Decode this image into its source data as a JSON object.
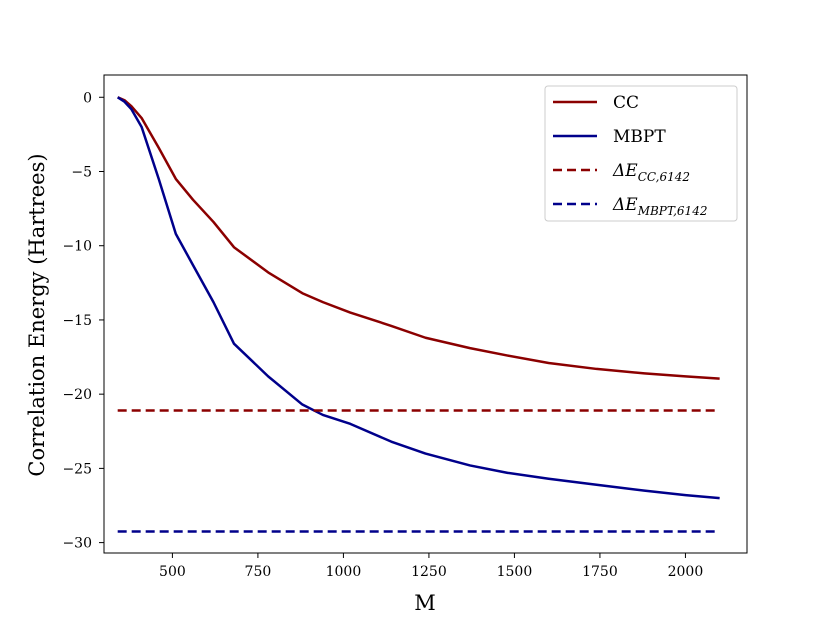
{
  "chart_data": {
    "type": "line",
    "title": "",
    "xlabel": "M",
    "ylabel": "Correlation Energy (Hartrees)",
    "xlim": [
      300,
      2180
    ],
    "ylim": [
      -30.7,
      1.5
    ],
    "xticks": [
      500,
      750,
      1000,
      1250,
      1500,
      1750,
      2000
    ],
    "yticks": [
      0,
      -5,
      -10,
      -15,
      -20,
      -25,
      -30
    ],
    "xtick_labels": [
      "500",
      "750",
      "1000",
      "1250",
      "1500",
      "1750",
      "2000"
    ],
    "ytick_labels": [
      "0",
      "−5",
      "−10",
      "−15",
      "−20",
      "−25",
      "−30"
    ],
    "legend_position": "top-right",
    "series": [
      {
        "name": "CC",
        "style": "solid",
        "color": "#8b0000",
        "x": [
          340,
          360,
          380,
          410,
          460,
          510,
          560,
          620,
          680,
          780,
          880,
          940,
          1020,
          1140,
          1240,
          1370,
          1480,
          1600,
          1740,
          1880,
          2000,
          2100
        ],
        "y": [
          0,
          -0.2,
          -0.6,
          -1.4,
          -3.4,
          -5.5,
          -6.9,
          -8.4,
          -10.1,
          -11.8,
          -13.2,
          -13.8,
          -14.5,
          -15.4,
          -16.2,
          -16.9,
          -17.4,
          -17.9,
          -18.3,
          -18.6,
          -18.8,
          -18.95
        ]
      },
      {
        "name": "MBPT",
        "style": "solid",
        "color": "#00008b",
        "x": [
          340,
          360,
          380,
          410,
          460,
          510,
          560,
          620,
          680,
          780,
          880,
          940,
          1020,
          1140,
          1240,
          1370,
          1480,
          1600,
          1740,
          1880,
          2000,
          2100
        ],
        "y": [
          0,
          -0.3,
          -0.8,
          -2.0,
          -5.5,
          -9.2,
          -11.3,
          -13.8,
          -16.6,
          -18.8,
          -20.7,
          -21.4,
          -22.0,
          -23.2,
          -24.0,
          -24.8,
          -25.3,
          -25.7,
          -26.1,
          -26.5,
          -26.8,
          -27.0
        ]
      },
      {
        "name": "ΔE_CC,6142",
        "style": "dashed",
        "color": "#8b0000",
        "x": [
          340,
          2100
        ],
        "y": [
          -21.1,
          -21.1
        ]
      },
      {
        "name": "ΔE_MBPT,6142",
        "style": "dashed",
        "color": "#00008b",
        "x": [
          340,
          2100
        ],
        "y": [
          -29.25,
          -29.25
        ]
      }
    ]
  },
  "legend": {
    "cc": "CC",
    "mbpt": "MBPT",
    "delta_cc": {
      "symbol": "ΔE",
      "subscript": "CC,6142"
    },
    "delta_mbpt": {
      "symbol": "ΔE",
      "subscript": "MBPT,6142"
    }
  }
}
